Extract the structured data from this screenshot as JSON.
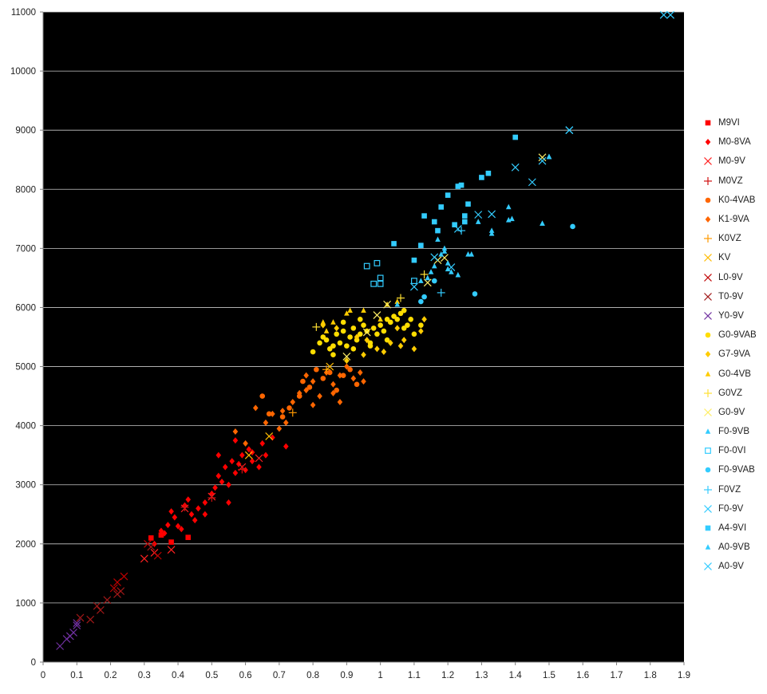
{
  "chart_data": {
    "type": "scatter",
    "title": "",
    "xlabel": "",
    "ylabel": "",
    "xlim": [
      0,
      1.9
    ],
    "ylim": [
      0,
      11000
    ],
    "x_ticks": [
      "0",
      "0.1",
      "0.2",
      "0.3",
      "0.4",
      "0.5",
      "0.6",
      "0.7",
      "0.8",
      "0.9",
      "1",
      "1.1",
      "1.2",
      "1.3",
      "1.4",
      "1.5",
      "1.6",
      "1.7",
      "1.8",
      "1.9"
    ],
    "y_ticks": [
      "0",
      "1000",
      "2000",
      "3000",
      "4000",
      "5000",
      "6000",
      "7000",
      "8000",
      "9000",
      "10000",
      "11000"
    ],
    "grid": "horizontal",
    "background": "#000000",
    "legend_position": "right",
    "series": [
      {
        "name": "M9VI",
        "color": "#ff0000",
        "marker": "square",
        "points": [
          [
            0.32,
            2100
          ],
          [
            0.35,
            2150
          ],
          [
            0.38,
            2030
          ],
          [
            0.43,
            2110
          ]
        ]
      },
      {
        "name": "M0-8VA",
        "color": "#ff0000",
        "marker": "diamond",
        "points": [
          [
            0.33,
            2000
          ],
          [
            0.35,
            2220
          ],
          [
            0.36,
            2180
          ],
          [
            0.37,
            2320
          ],
          [
            0.38,
            2550
          ],
          [
            0.39,
            2450
          ],
          [
            0.4,
            2300
          ],
          [
            0.41,
            2250
          ],
          [
            0.42,
            2650
          ],
          [
            0.43,
            2750
          ],
          [
            0.44,
            2500
          ],
          [
            0.45,
            2400
          ],
          [
            0.46,
            2600
          ],
          [
            0.48,
            2700
          ],
          [
            0.5,
            2850
          ],
          [
            0.51,
            2950
          ],
          [
            0.52,
            3150
          ],
          [
            0.53,
            3050
          ],
          [
            0.54,
            3300
          ],
          [
            0.55,
            3000
          ],
          [
            0.56,
            3400
          ],
          [
            0.57,
            3200
          ],
          [
            0.58,
            3350
          ],
          [
            0.59,
            3500
          ],
          [
            0.6,
            3250
          ],
          [
            0.61,
            3600
          ],
          [
            0.62,
            3550
          ],
          [
            0.64,
            3300
          ],
          [
            0.65,
            3700
          ],
          [
            0.66,
            3500
          ],
          [
            0.68,
            3800
          ],
          [
            0.72,
            3650
          ],
          [
            0.55,
            2700
          ],
          [
            0.48,
            2500
          ],
          [
            0.52,
            3500
          ],
          [
            0.57,
            3750
          ],
          [
            0.62,
            3400
          ]
        ]
      },
      {
        "name": "M0-9V",
        "color": "#ff2020",
        "marker": "x",
        "points": [
          [
            0.3,
            1750
          ],
          [
            0.33,
            1850
          ],
          [
            0.38,
            1900
          ],
          [
            0.42,
            2600
          ],
          [
            0.5,
            2800
          ],
          [
            0.59,
            3300
          ],
          [
            0.64,
            3450
          ]
        ]
      },
      {
        "name": "M0VZ",
        "color": "#d01010",
        "marker": "plus",
        "points": [
          [
            0.42,
            2620
          ],
          [
            0.5,
            2780
          ],
          [
            0.59,
            3260
          ]
        ]
      },
      {
        "name": "K0-4VAB",
        "color": "#ff6600",
        "marker": "circle",
        "points": [
          [
            0.67,
            4200
          ],
          [
            0.71,
            4150
          ],
          [
            0.73,
            4300
          ],
          [
            0.76,
            4500
          ],
          [
            0.77,
            4750
          ],
          [
            0.79,
            4650
          ],
          [
            0.81,
            4950
          ],
          [
            0.83,
            4800
          ],
          [
            0.85,
            4900
          ],
          [
            0.87,
            4600
          ],
          [
            0.89,
            4850
          ],
          [
            0.91,
            4950
          ],
          [
            0.93,
            4700
          ],
          [
            0.65,
            4500
          ]
        ]
      },
      {
        "name": "K1-9VA",
        "color": "#ff6600",
        "marker": "diamond",
        "points": [
          [
            0.57,
            3900
          ],
          [
            0.6,
            3700
          ],
          [
            0.63,
            4300
          ],
          [
            0.66,
            4050
          ],
          [
            0.68,
            4200
          ],
          [
            0.71,
            4250
          ],
          [
            0.74,
            4400
          ],
          [
            0.76,
            4550
          ],
          [
            0.78,
            4600
          ],
          [
            0.8,
            4750
          ],
          [
            0.82,
            4500
          ],
          [
            0.84,
            4900
          ],
          [
            0.86,
            4700
          ],
          [
            0.88,
            4850
          ],
          [
            0.9,
            5000
          ],
          [
            0.92,
            4800
          ],
          [
            0.94,
            4900
          ],
          [
            0.95,
            4750
          ],
          [
            0.88,
            4400
          ],
          [
            0.86,
            4550
          ],
          [
            0.72,
            4050
          ],
          [
            0.7,
            3950
          ],
          [
            0.78,
            4850
          ],
          [
            0.8,
            4350
          ]
        ]
      },
      {
        "name": "K0VZ",
        "color": "#ff9900",
        "marker": "plus",
        "points": [
          [
            0.74,
            4220
          ],
          [
            0.84,
            4950
          ]
        ]
      },
      {
        "name": "KV",
        "color": "#ffbb00",
        "marker": "x",
        "points": [
          [
            0.61,
            3500
          ],
          [
            0.67,
            3820
          ],
          [
            0.85,
            5000
          ]
        ]
      },
      {
        "name": "L0-9V",
        "color": "#c00000",
        "marker": "x",
        "points": [
          [
            0.22,
            1350
          ],
          [
            0.24,
            1450
          ],
          [
            0.31,
            2000
          ],
          [
            0.34,
            1800
          ],
          [
            0.21,
            1250
          ]
        ]
      },
      {
        "name": "T0-9V",
        "color": "#a01818",
        "marker": "x",
        "points": [
          [
            0.11,
            750
          ],
          [
            0.14,
            720
          ],
          [
            0.16,
            950
          ],
          [
            0.17,
            880
          ],
          [
            0.19,
            1050
          ],
          [
            0.22,
            1150
          ],
          [
            0.23,
            1200
          ],
          [
            0.32,
            1950
          ]
        ]
      },
      {
        "name": "Y0-9V",
        "color": "#7030a0",
        "marker": "x",
        "points": [
          [
            0.05,
            270
          ],
          [
            0.07,
            390
          ],
          [
            0.08,
            440
          ],
          [
            0.09,
            500
          ],
          [
            0.1,
            620
          ],
          [
            0.1,
            660
          ]
        ]
      },
      {
        "name": "G0-9VAB",
        "color": "#ffdd00",
        "marker": "circle",
        "points": [
          [
            0.8,
            5250
          ],
          [
            0.82,
            5400
          ],
          [
            0.83,
            5500
          ],
          [
            0.84,
            5450
          ],
          [
            0.85,
            5300
          ],
          [
            0.86,
            5350
          ],
          [
            0.87,
            5550
          ],
          [
            0.88,
            5400
          ],
          [
            0.89,
            5600
          ],
          [
            0.9,
            5350
          ],
          [
            0.91,
            5500
          ],
          [
            0.92,
            5650
          ],
          [
            0.93,
            5450
          ],
          [
            0.94,
            5550
          ],
          [
            0.95,
            5700
          ],
          [
            0.96,
            5600
          ],
          [
            0.97,
            5400
          ],
          [
            0.98,
            5650
          ],
          [
            0.99,
            5550
          ],
          [
            1.0,
            5700
          ],
          [
            1.01,
            5600
          ],
          [
            1.02,
            5800
          ],
          [
            1.03,
            5750
          ],
          [
            1.04,
            5850
          ],
          [
            1.05,
            5800
          ],
          [
            1.06,
            5900
          ],
          [
            1.07,
            5650
          ],
          [
            1.08,
            5700
          ],
          [
            1.09,
            5800
          ],
          [
            1.1,
            5550
          ],
          [
            1.12,
            5700
          ],
          [
            0.86,
            5200
          ],
          [
            0.92,
            5300
          ],
          [
            0.97,
            5350
          ],
          [
            1.02,
            5450
          ],
          [
            1.07,
            5950
          ],
          [
            0.94,
            5800
          ],
          [
            0.89,
            5750
          ]
        ]
      },
      {
        "name": "G7-9VA",
        "color": "#ffcc00",
        "marker": "diamond",
        "points": [
          [
            0.83,
            5700
          ],
          [
            0.87,
            5650
          ],
          [
            0.93,
            5500
          ],
          [
            0.95,
            5200
          ],
          [
            0.99,
            5300
          ],
          [
            1.01,
            5250
          ],
          [
            1.03,
            5400
          ],
          [
            1.05,
            5650
          ],
          [
            1.06,
            5350
          ],
          [
            1.07,
            5450
          ],
          [
            1.1,
            5300
          ],
          [
            1.12,
            5600
          ],
          [
            1.13,
            5800
          ],
          [
            0.9,
            5100
          ],
          [
            0.96,
            5450
          ]
        ]
      },
      {
        "name": "G0-4VB",
        "color": "#ffcc00",
        "marker": "triangle",
        "points": [
          [
            0.83,
            5750
          ],
          [
            0.86,
            5750
          ],
          [
            0.9,
            5900
          ],
          [
            0.91,
            5950
          ],
          [
            0.95,
            5950
          ],
          [
            1.0,
            5800
          ],
          [
            1.02,
            6050
          ],
          [
            1.05,
            6100
          ],
          [
            0.84,
            5600
          ]
        ]
      },
      {
        "name": "G0VZ",
        "color": "#ffe033",
        "marker": "plus",
        "points": [
          [
            0.81,
            5670
          ],
          [
            1.06,
            6160
          ],
          [
            1.13,
            6560
          ]
        ]
      },
      {
        "name": "G0-9V",
        "color": "#ffee66",
        "marker": "x",
        "points": [
          [
            0.9,
            5170
          ],
          [
            0.96,
            5580
          ],
          [
            1.02,
            6050
          ],
          [
            1.14,
            6420
          ],
          [
            1.17,
            6800
          ],
          [
            1.19,
            6840
          ],
          [
            1.48,
            8540
          ],
          [
            0.99,
            5870
          ]
        ]
      },
      {
        "name": "F0-9VB",
        "color": "#33ccff",
        "marker": "triangle",
        "points": [
          [
            1.05,
            6050
          ],
          [
            1.12,
            6450
          ],
          [
            1.14,
            6500
          ],
          [
            1.15,
            6600
          ],
          [
            1.16,
            6700
          ],
          [
            1.17,
            7150
          ],
          [
            1.18,
            6900
          ],
          [
            1.19,
            6950
          ],
          [
            1.2,
            6750
          ],
          [
            1.21,
            6600
          ],
          [
            1.23,
            6550
          ],
          [
            1.27,
            6900
          ],
          [
            1.29,
            7450
          ],
          [
            1.33,
            7250
          ],
          [
            1.38,
            7700
          ],
          [
            1.39,
            7500
          ],
          [
            1.48,
            7420
          ],
          [
            1.5,
            8550
          ]
        ]
      },
      {
        "name": "F0-0VI",
        "color": "#33ccff",
        "marker": "square-open",
        "points": [
          [
            0.96,
            6700
          ],
          [
            0.98,
            6400
          ],
          [
            0.99,
            6750
          ],
          [
            1.0,
            6500
          ],
          [
            1.0,
            6400
          ],
          [
            1.1,
            6450
          ]
        ]
      },
      {
        "name": "F0-9VAB",
        "color": "#33ccff",
        "marker": "circle",
        "points": [
          [
            1.12,
            6100
          ],
          [
            1.13,
            6180
          ],
          [
            1.28,
            6230
          ],
          [
            1.57,
            7370
          ],
          [
            1.16,
            6450
          ]
        ]
      },
      {
        "name": "F0VZ",
        "color": "#33ccff",
        "marker": "plus",
        "points": [
          [
            1.18,
            6250
          ],
          [
            1.24,
            7300
          ]
        ]
      },
      {
        "name": "F0-9V",
        "color": "#33ccff",
        "marker": "x",
        "points": [
          [
            1.16,
            6850
          ],
          [
            1.21,
            6680
          ],
          [
            1.23,
            7330
          ],
          [
            1.29,
            7570
          ],
          [
            1.33,
            7580
          ],
          [
            1.4,
            8370
          ],
          [
            1.45,
            8120
          ],
          [
            1.48,
            8480
          ],
          [
            1.56,
            9000
          ],
          [
            1.1,
            6350
          ]
        ]
      },
      {
        "name": "A4-9VI",
        "color": "#33ccff",
        "marker": "square",
        "points": [
          [
            1.04,
            7080
          ],
          [
            1.1,
            6800
          ],
          [
            1.12,
            7050
          ],
          [
            1.13,
            7550
          ],
          [
            1.16,
            7450
          ],
          [
            1.17,
            7300
          ],
          [
            1.18,
            7700
          ],
          [
            1.2,
            7900
          ],
          [
            1.22,
            7400
          ],
          [
            1.23,
            8050
          ],
          [
            1.24,
            8070
          ],
          [
            1.25,
            7450
          ],
          [
            1.25,
            7550
          ],
          [
            1.26,
            7750
          ],
          [
            1.3,
            8200
          ],
          [
            1.32,
            8270
          ],
          [
            1.4,
            8880
          ]
        ]
      },
      {
        "name": "A0-9VB",
        "color": "#33ccff",
        "marker": "triangle",
        "points": [
          [
            1.19,
            7000
          ],
          [
            1.2,
            6650
          ],
          [
            1.26,
            6900
          ],
          [
            1.33,
            7300
          ],
          [
            1.38,
            7480
          ],
          [
            1.5,
            8550
          ],
          [
            1.48,
            7420
          ]
        ]
      },
      {
        "name": "A0-9V",
        "color": "#33ccff",
        "marker": "x",
        "points": [
          [
            1.84,
            10950
          ],
          [
            1.86,
            10950
          ],
          [
            1.56,
            9000
          ]
        ]
      }
    ]
  }
}
